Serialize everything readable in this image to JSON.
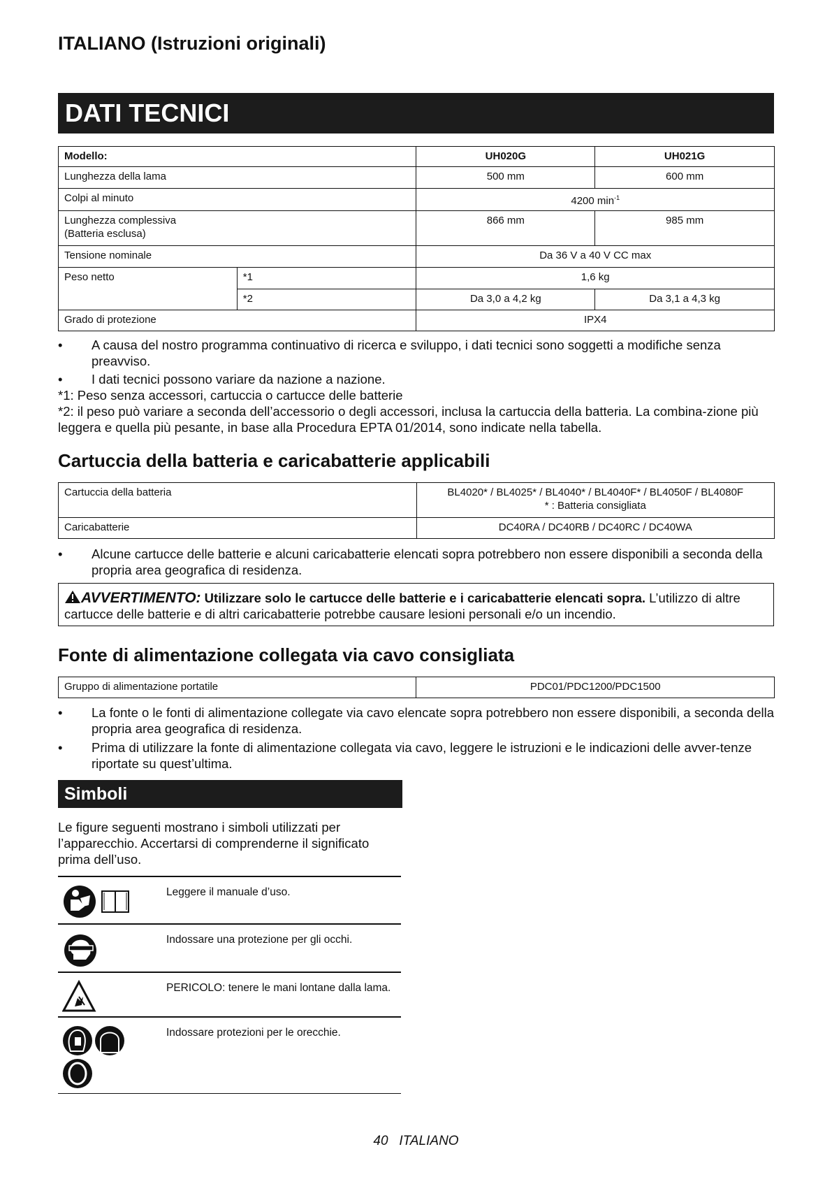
{
  "header": {
    "language_title": "ITALIANO (Istruzioni originali)"
  },
  "specs": {
    "title": "DATI TECNICI",
    "model_label": "Modello:",
    "models": [
      "UH020G",
      "UH021G"
    ],
    "rows": {
      "blade_length": {
        "label": "Lunghezza della lama",
        "values": [
          "500 mm",
          "600 mm"
        ]
      },
      "strokes": {
        "label": "Colpi al minuto",
        "value": "4200 min",
        "sup": "-1"
      },
      "overall_length": {
        "label": "Lunghezza complessiva",
        "label2": "(Batteria esclusa)",
        "values": [
          "866 mm",
          "985 mm"
        ]
      },
      "voltage": {
        "label": "Tensione nominale",
        "value": "Da  36 V a 40 V CC max"
      },
      "net_weight": {
        "label": "Peso netto",
        "sub1": "*1",
        "value1": "1,6 kg",
        "sub2": "*2",
        "values2": [
          "Da 3,0 a 4,2 kg",
          "Da 3,1 a 4,3 kg"
        ]
      },
      "protection": {
        "label": "Grado di protezione",
        "value": "IPX4"
      }
    },
    "notes": [
      "A causa del nostro programma continuativo di ricerca e sviluppo, i dati tecnici sono soggetti a modifiche senza preavviso.",
      "I dati tecnici possono variare da nazione a nazione."
    ],
    "footnote1": "*1: Peso senza accessori, cartuccia o cartucce delle batterie",
    "footnote2": "*2: il peso può variare a seconda dell’accessorio o degli accessori, inclusa la cartuccia della batteria. La combina-zione più leggera e quella più pesante, in base alla Procedura EPTA 01/2014, sono indicate nella tabella."
  },
  "battery": {
    "title": "Cartuccia della batteria e caricabatterie applicabili",
    "cartridge_label": "Cartuccia della batteria",
    "cartridge_value": "BL4020* / BL4025* / BL4040* / BL4040F* / BL4050F / BL4080F",
    "cartridge_note": "* : Batteria consigliata",
    "charger_label": "Caricabatterie",
    "charger_value": "DC40RA / DC40RB / DC40RC / DC40WA",
    "note": "Alcune cartucce delle batterie e alcuni caricabatterie elencati sopra potrebbero non essere disponibili a seconda della propria area geografica di residenza.",
    "warning_label": "AVVERTIMENTO:",
    "warning_bold": "Utilizzare solo le cartucce delle batterie e i caricabatterie elencati sopra.",
    "warning_text": "L’utilizzo di altre cartucce delle batterie e di altri caricabatterie potrebbe causare lesioni personali e/o un incendio."
  },
  "power": {
    "title": "Fonte di alimentazione collegata via cavo consigliata",
    "label": "Gruppo di alimentazione portatile",
    "value": "PDC01/PDC1200/PDC1500",
    "notes": [
      "La fonte o le fonti di alimentazione collegate via cavo elencate sopra potrebbero non essere disponibili, a seconda della propria area geografica di residenza.",
      "Prima di utilizzare la fonte di alimentazione collegata via cavo, leggere le istruzioni e le indicazioni delle avver-tenze riportate su quest’ultima."
    ]
  },
  "symbols": {
    "title": "Simboli",
    "intro": "Le figure seguenti mostrano i simboli utilizzati per l’apparecchio. Accertarsi di comprenderne il significato prima dell’uso.",
    "items": [
      {
        "icon": "read-manual-icon",
        "text": "Leggere il manuale d’uso."
      },
      {
        "icon": "eye-protection-icon",
        "text": "Indossare una protezione per gli occhi."
      },
      {
        "icon": "hand-blade-danger-icon",
        "text": "PERICOLO: tenere le mani lontane dalla lama."
      },
      {
        "icon": "ear-protection-icon",
        "text": "Indossare protezioni per le orecchie."
      }
    ]
  },
  "footer": {
    "page": "40",
    "language": "ITALIANO"
  }
}
